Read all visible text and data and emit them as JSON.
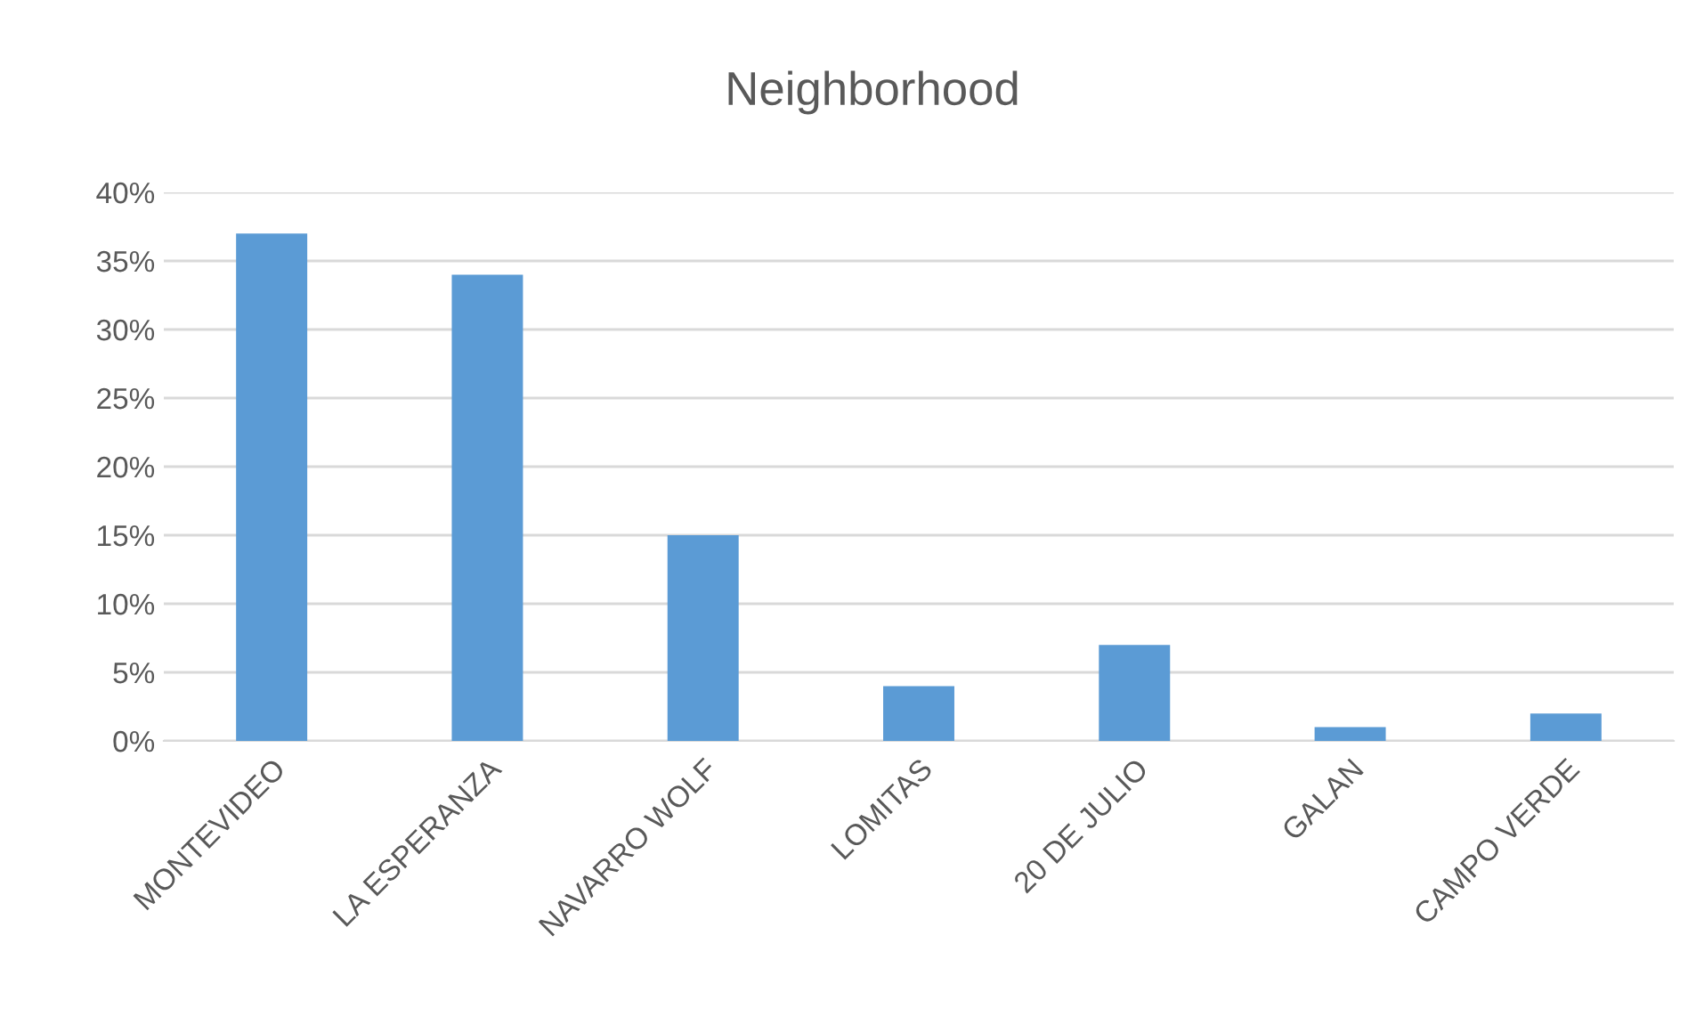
{
  "chart_data": {
    "type": "bar",
    "title": "Neighborhood",
    "categories": [
      "MONTEVIDEO",
      "LA ESPERANZA",
      "NAVARRO WOLF",
      "LOMITAS",
      "20 DE JULIO",
      "GALAN",
      "CAMPO VERDE"
    ],
    "values": [
      37,
      34,
      15,
      4,
      7,
      1,
      2
    ],
    "color": "#5b9bd5",
    "ylim": [
      0,
      40
    ],
    "yticks": [
      {
        "value": 0,
        "label": "0%"
      },
      {
        "value": 5,
        "label": "5%"
      },
      {
        "value": 10,
        "label": "10%"
      },
      {
        "value": 15,
        "label": "15%"
      },
      {
        "value": 20,
        "label": "20%"
      },
      {
        "value": 25,
        "label": "25%"
      },
      {
        "value": 30,
        "label": "30%"
      },
      {
        "value": 35,
        "label": "35%"
      },
      {
        "value": 40,
        "label": "40%"
      }
    ],
    "grid": "y"
  }
}
